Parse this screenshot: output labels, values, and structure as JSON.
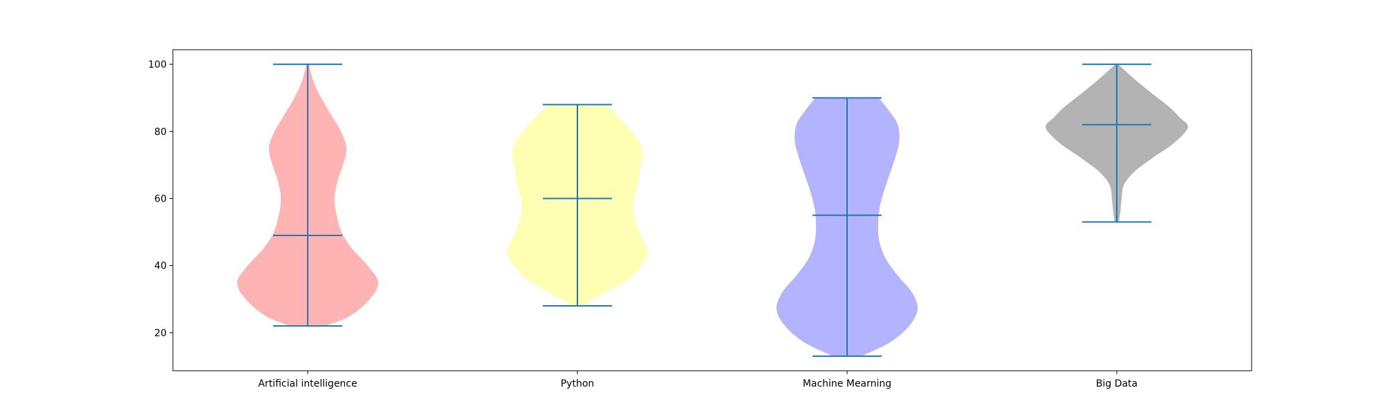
{
  "chart_data": {
    "type": "violin",
    "title": "",
    "xlabel": "",
    "ylabel": "",
    "ylim": [
      8.65,
      104.35
    ],
    "yticks": [
      20,
      40,
      60,
      80,
      100
    ],
    "grid": false,
    "categories": [
      "Artificial intelligence",
      "Python",
      "Machine Mearning",
      "Big Data"
    ],
    "series": [
      {
        "category": "Artificial intelligence",
        "color": "#ffb3b3",
        "min": 22,
        "median": 49,
        "max": 100,
        "density_profile": [
          [
            22,
            0.25
          ],
          [
            25,
            0.6
          ],
          [
            30,
            0.88
          ],
          [
            35,
            1.0
          ],
          [
            40,
            0.85
          ],
          [
            45,
            0.63
          ],
          [
            50,
            0.48
          ],
          [
            55,
            0.41
          ],
          [
            60,
            0.38
          ],
          [
            65,
            0.42
          ],
          [
            70,
            0.5
          ],
          [
            75,
            0.55
          ],
          [
            80,
            0.47
          ],
          [
            85,
            0.33
          ],
          [
            90,
            0.19
          ],
          [
            95,
            0.08
          ],
          [
            100,
            0.02
          ]
        ]
      },
      {
        "category": "Python",
        "color": "#ffffb3",
        "min": 28,
        "median": 60,
        "max": 88,
        "density_profile": [
          [
            28,
            0.05
          ],
          [
            32,
            0.4
          ],
          [
            36,
            0.72
          ],
          [
            40,
            0.9
          ],
          [
            44,
            1.0
          ],
          [
            48,
            0.92
          ],
          [
            52,
            0.84
          ],
          [
            56,
            0.79
          ],
          [
            60,
            0.8
          ],
          [
            64,
            0.86
          ],
          [
            68,
            0.88
          ],
          [
            72,
            0.92
          ],
          [
            76,
            0.9
          ],
          [
            80,
            0.77
          ],
          [
            84,
            0.6
          ],
          [
            88,
            0.4
          ]
        ]
      },
      {
        "category": "Machine Mearning",
        "color": "#b3b3ff",
        "min": 13,
        "median": 55,
        "max": 90,
        "density_profile": [
          [
            13,
            0.2
          ],
          [
            17,
            0.6
          ],
          [
            22,
            0.88
          ],
          [
            27,
            1.0
          ],
          [
            32,
            0.92
          ],
          [
            37,
            0.72
          ],
          [
            42,
            0.55
          ],
          [
            47,
            0.46
          ],
          [
            52,
            0.44
          ],
          [
            57,
            0.46
          ],
          [
            62,
            0.52
          ],
          [
            67,
            0.6
          ],
          [
            72,
            0.68
          ],
          [
            77,
            0.74
          ],
          [
            82,
            0.72
          ],
          [
            86,
            0.6
          ],
          [
            90,
            0.45
          ]
        ]
      },
      {
        "category": "Big Data",
        "color": "#b3b3b3",
        "min": 53,
        "median": 82,
        "max": 100,
        "density_profile": [
          [
            53,
            0.03
          ],
          [
            56,
            0.05
          ],
          [
            60,
            0.07
          ],
          [
            64,
            0.1
          ],
          [
            68,
            0.25
          ],
          [
            72,
            0.5
          ],
          [
            76,
            0.78
          ],
          [
            80,
            0.98
          ],
          [
            82,
            1.0
          ],
          [
            84,
            0.9
          ],
          [
            87,
            0.76
          ],
          [
            90,
            0.58
          ],
          [
            93,
            0.4
          ],
          [
            96,
            0.23
          ],
          [
            100,
            0.02
          ]
        ]
      }
    ],
    "stat_line_color": "#1f77b4",
    "axis_color": "#000000",
    "text_color": "#000000"
  }
}
